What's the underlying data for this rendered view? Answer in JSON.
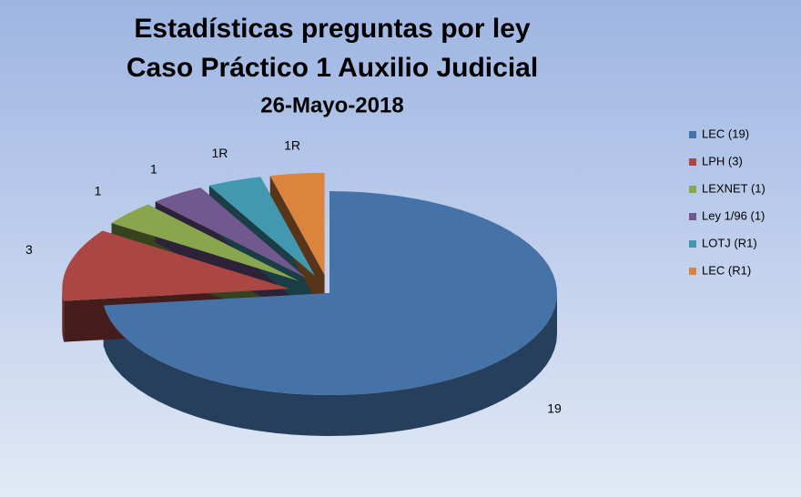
{
  "chart_data": {
    "type": "pie3d",
    "title": [
      "Estadísticas preguntas por ley",
      "Caso Práctico 1 Auxilio Judicial",
      "26-Mayo-2018"
    ],
    "categories": [
      "LEC (19)",
      "LPH (3)",
      "LEXNET (1)",
      "Ley 1/96 (1)",
      "LOTJ (R1)",
      "LEC (R1)"
    ],
    "values": [
      19,
      3,
      1,
      1,
      1,
      1
    ],
    "value_labels": [
      "19",
      "3",
      "1",
      "1",
      "1R",
      "1R"
    ],
    "colors": [
      "#4572a7",
      "#aa4643",
      "#89a54e",
      "#71588f",
      "#4198af",
      "#db843d"
    ],
    "legend": "right"
  }
}
